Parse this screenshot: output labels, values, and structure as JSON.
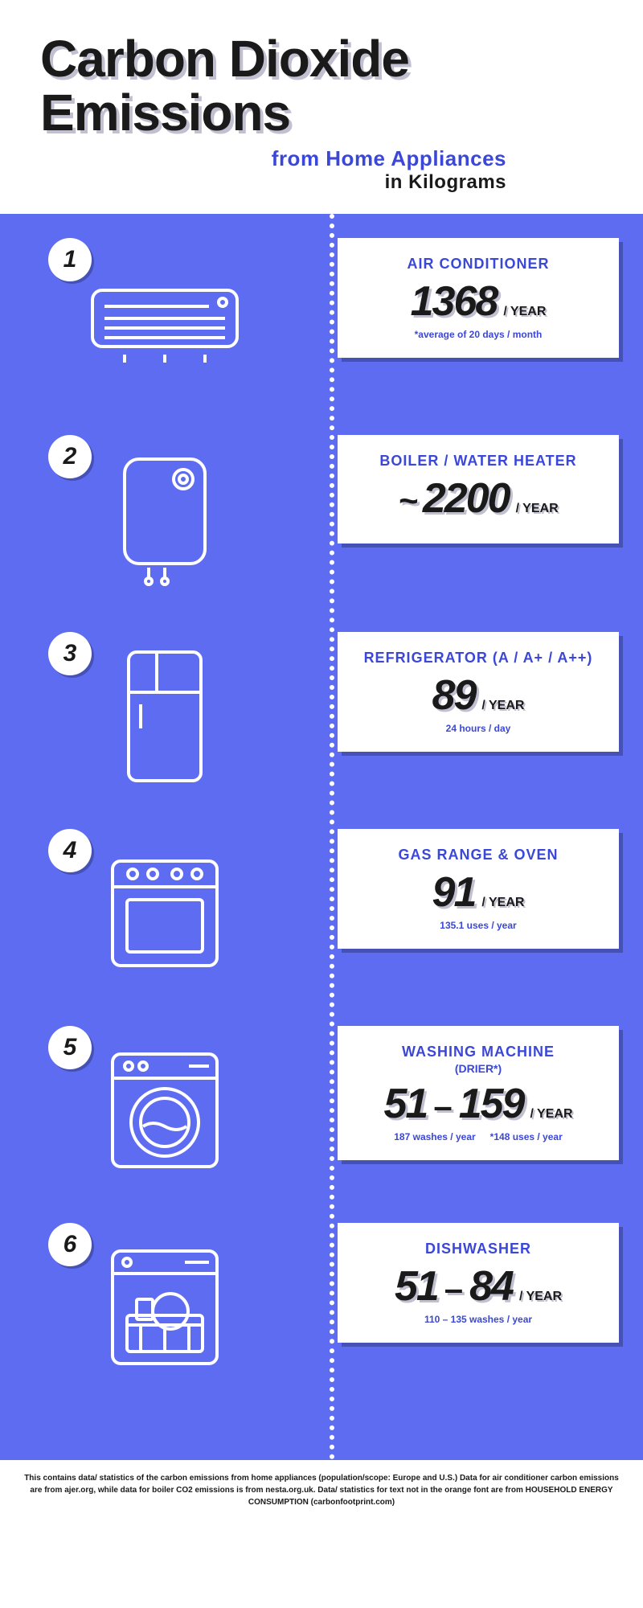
{
  "colors": {
    "accent": "#3b47d8",
    "bg": "#5e6cf2",
    "text": "#1a1a1a",
    "shadow": "#c0c0d0"
  },
  "header": {
    "title_line1": "Carbon Dioxide",
    "title_line2": "Emissions",
    "subtitle1": "from Home Appliances",
    "subtitle2": "in Kilograms"
  },
  "items": [
    {
      "num": "1",
      "icon": "ac",
      "title": "AIR CONDITIONER",
      "value": "1368",
      "unit": "/ YEAR",
      "note": "*average of 20 days / month"
    },
    {
      "num": "2",
      "icon": "boiler",
      "title": "BOILER / WATER HEATER",
      "prefix": "~",
      "value": "2200",
      "unit": "/ YEAR"
    },
    {
      "num": "3",
      "icon": "fridge",
      "title": "REFRIGERATOR (A / A+ / A++)",
      "value": "89",
      "unit": "/ YEAR",
      "note": "24 hours / day"
    },
    {
      "num": "4",
      "icon": "oven",
      "title": "GAS RANGE & OVEN",
      "value": "91",
      "unit": "/ YEAR",
      "note": "135.1 uses / year"
    },
    {
      "num": "5",
      "icon": "washer",
      "title": "WASHING MACHINE",
      "subtitle": "(DRIER*)",
      "value": "51",
      "value2": "159",
      "unit": "/ YEAR",
      "note": "187 washes / year",
      "note2": "*148 uses / year"
    },
    {
      "num": "6",
      "icon": "dishwasher",
      "title": "DISHWASHER",
      "value": "51",
      "value2": "84",
      "unit": "/ YEAR",
      "note": "110 – 135 washes / year"
    }
  ],
  "footer": "This contains data/ statistics of the carbon emissions from home appliances (population/scope: Europe and U.S.) Data for air conditioner carbon emissions are from ajer.org, while data for boiler CO2 emissions is from nesta.org.uk. Data/ statistics for text not in the orange font are from HOUSEHOLD ENERGY CONSUMPTION (carbonfootprint.com)"
}
